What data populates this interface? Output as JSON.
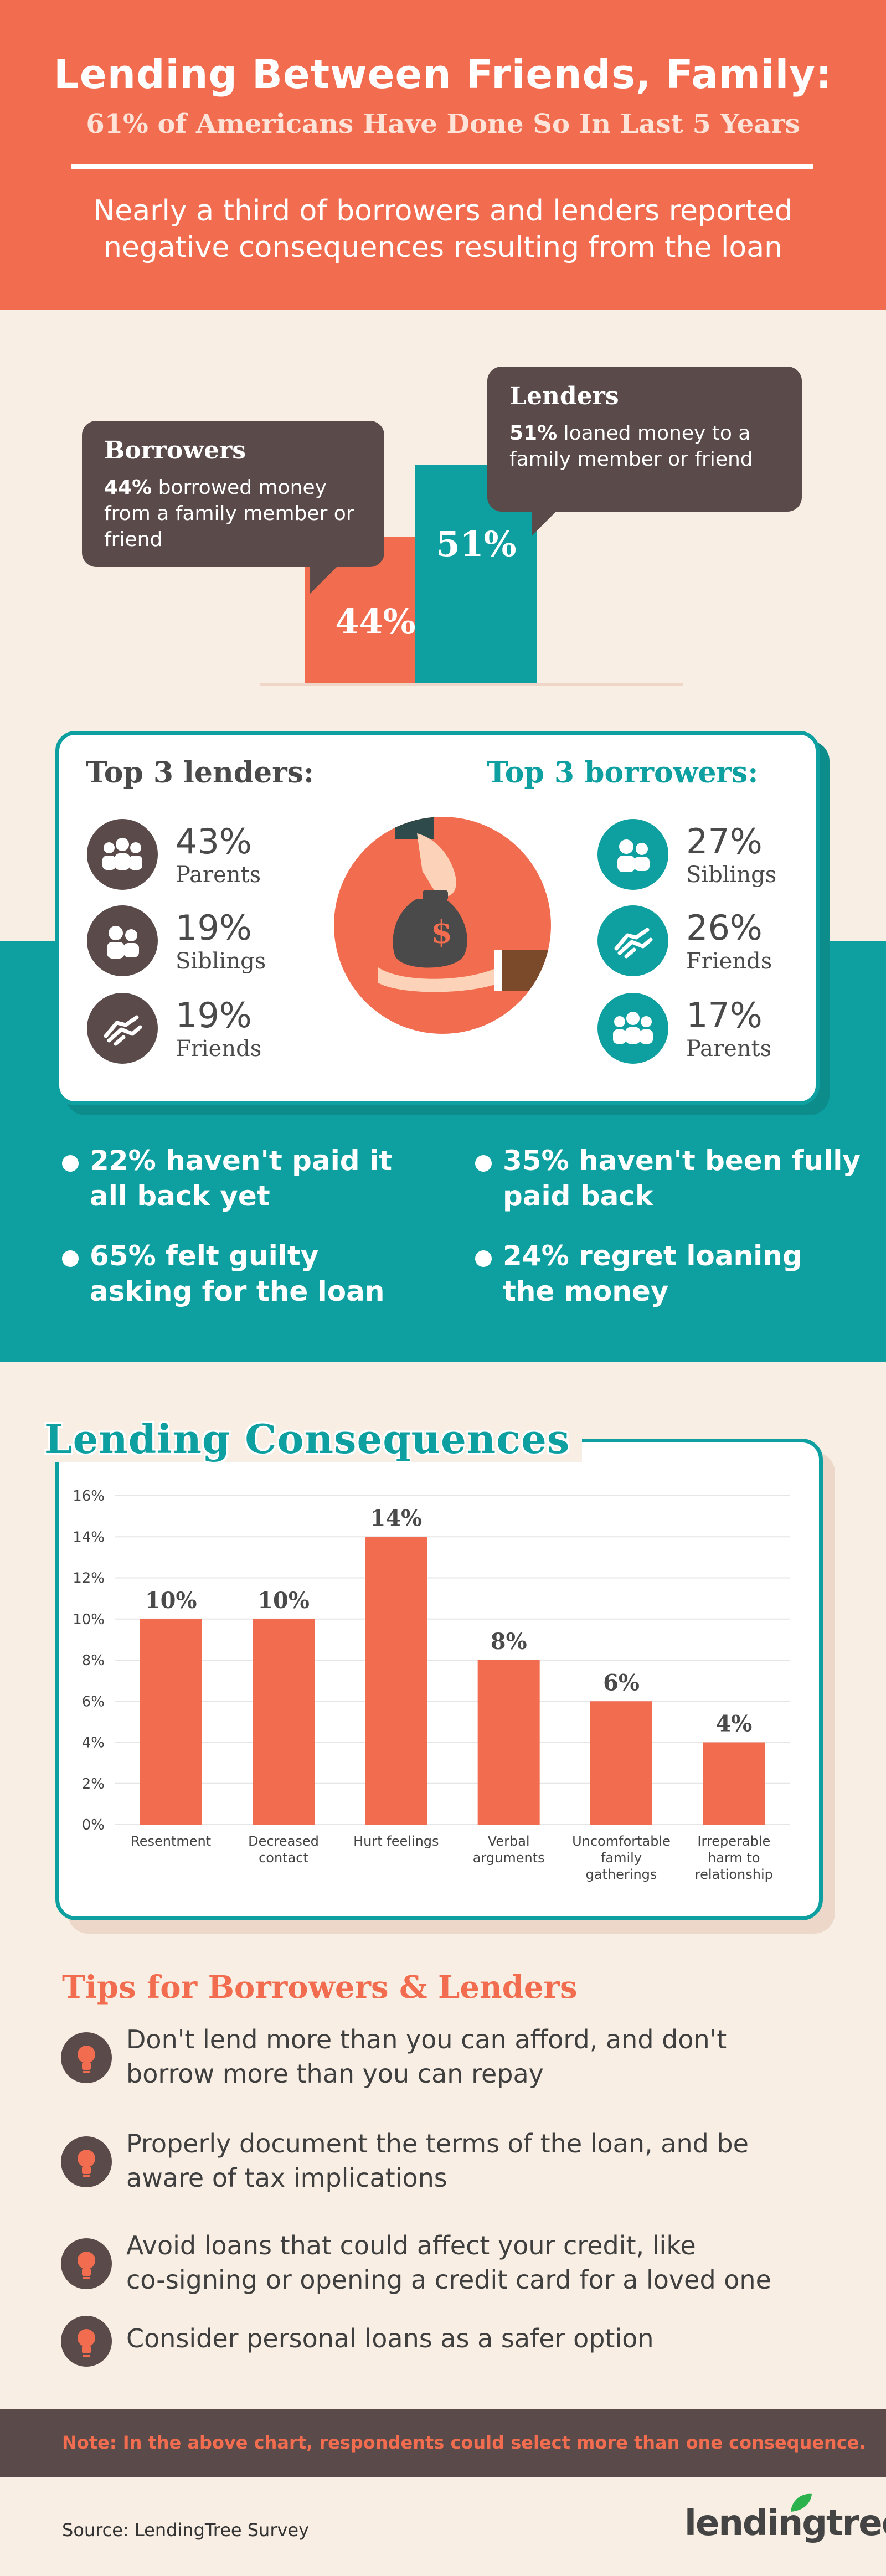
{
  "header": {
    "title": "Lending Between Friends, Family:",
    "subtitle": "61% of Americans Have Done So In Last 5 Years",
    "description": "Nearly a third of borrowers and lenders reported negative consequences resulting from the loan"
  },
  "overview": {
    "borrowers": {
      "title": "Borrowers",
      "pct_bold": "44%",
      "text": " borrowed money from a family member or friend",
      "bar_label": "44%",
      "value": 44
    },
    "lenders": {
      "title": "Lenders",
      "pct_bold": "51%",
      "text": " loaned money to a family member or friend",
      "bar_label": "51%",
      "value": 51
    }
  },
  "top3": {
    "lenders_title": "Top 3 lenders:",
    "borrowers_title": "Top 3 borrowers:",
    "lenders": [
      {
        "pct": "43%",
        "label": "Parents",
        "icon": "parents-icon"
      },
      {
        "pct": "19%",
        "label": "Siblings",
        "icon": "siblings-icon"
      },
      {
        "pct": "19%",
        "label": "Friends",
        "icon": "friends-icon"
      }
    ],
    "borrowers": [
      {
        "pct": "27%",
        "label": "Siblings",
        "icon": "siblings-icon"
      },
      {
        "pct": "26%",
        "label": "Friends",
        "icon": "friends-icon"
      },
      {
        "pct": "17%",
        "label": "Parents",
        "icon": "parents-icon"
      }
    ]
  },
  "facts": [
    "22% haven't paid it all back yet",
    "35% haven't been fully paid back",
    "65% felt guilty asking for the loan",
    "24% regret loaning the money"
  ],
  "chart_data": {
    "type": "bar",
    "title": "Lending Consequences",
    "categories": [
      "Resentment",
      "Decreased contact",
      "Hurt feelings",
      "Verbal arguments",
      "Uncomfortable family gatherings",
      "Irreperable harm to relationship"
    ],
    "category_lines": [
      [
        "Resentment"
      ],
      [
        "Decreased",
        "contact"
      ],
      [
        "Hurt feelings"
      ],
      [
        "Verbal",
        "arguments"
      ],
      [
        "Uncomfortable",
        "family",
        "gatherings"
      ],
      [
        "Irreperable",
        "harm to",
        "relationship"
      ]
    ],
    "values": [
      10,
      10,
      14,
      8,
      6,
      4
    ],
    "value_labels": [
      "10%",
      "10%",
      "14%",
      "8%",
      "6%",
      "4%"
    ],
    "yticks": [
      "0%",
      "2%",
      "4%",
      "6%",
      "8%",
      "10%",
      "12%",
      "14%",
      "16%"
    ],
    "ylim": [
      0,
      16
    ],
    "grid": true,
    "bar_color": "#f26c4f"
  },
  "tips": {
    "title": "Tips for Borrowers & Lenders",
    "items": [
      {
        "lines": [
          "Don't lend more than you can afford, and  don't",
          "borrow more than you can repay"
        ]
      },
      {
        "lines": [
          "Properly document the terms of the loan, and be",
          "aware of tax implications"
        ]
      },
      {
        "lines": [
          "Avoid loans that could affect your credit, like",
          "co-signing or opening a credit card for a loved one"
        ]
      },
      {
        "lines": [
          "Consider personal loans as a safer option"
        ]
      }
    ]
  },
  "footer": {
    "note": "Note: In the above chart, respondents could select more than one consequence.",
    "source": "Source: LendingTree Survey",
    "logo": "lendingtree"
  },
  "colors": {
    "coral": "#f26c4f",
    "teal": "#0ea0a0",
    "dark": "#5a4a49",
    "cream": "#f8eee3"
  }
}
